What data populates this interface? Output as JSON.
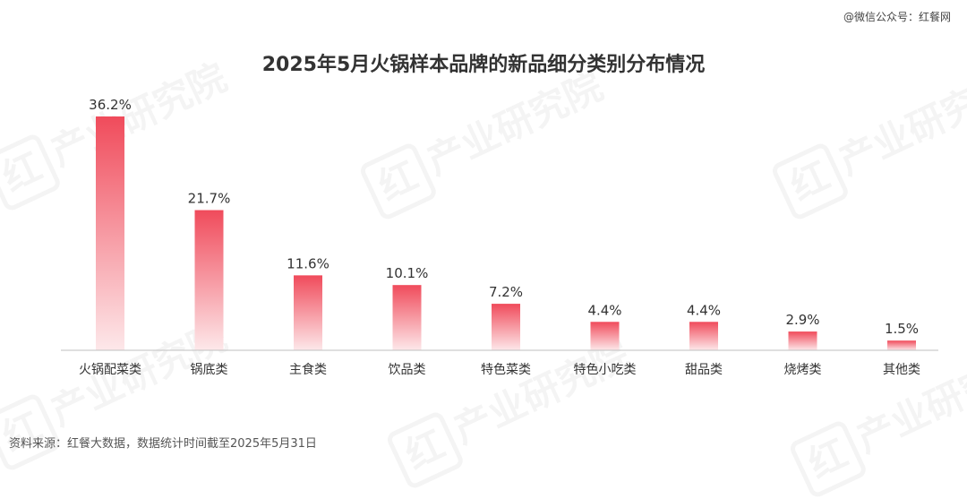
{
  "source_top": "@微信公众号：红餐网",
  "footnote": "资料来源：红餐大数据，数据统计时间截至2025年5月31日",
  "watermark_text": "红餐 产业研究院",
  "colors": {
    "bar_top": "#f04b5b",
    "bar_bottom": "#fde8ea",
    "axis": "#bfbfbf",
    "text": "#333333"
  },
  "chart_data": {
    "type": "bar",
    "title": "2025年5月火锅样本品牌的新品细分类别分布情况",
    "categories": [
      "火锅配菜类",
      "锅底类",
      "主食类",
      "饮品类",
      "特色菜类",
      "特色小吃类",
      "甜品类",
      "烧烤类",
      "其他类"
    ],
    "values": [
      36.2,
      21.7,
      11.6,
      10.1,
      7.2,
      4.4,
      4.4,
      2.9,
      1.5
    ],
    "value_labels": [
      "36.2%",
      "21.7%",
      "11.6%",
      "10.1%",
      "7.2%",
      "4.4%",
      "4.4%",
      "2.9%",
      "1.5%"
    ],
    "xlabel": "",
    "ylabel": "",
    "ylim": [
      0,
      36.2
    ],
    "grid": false,
    "legend": "none"
  }
}
